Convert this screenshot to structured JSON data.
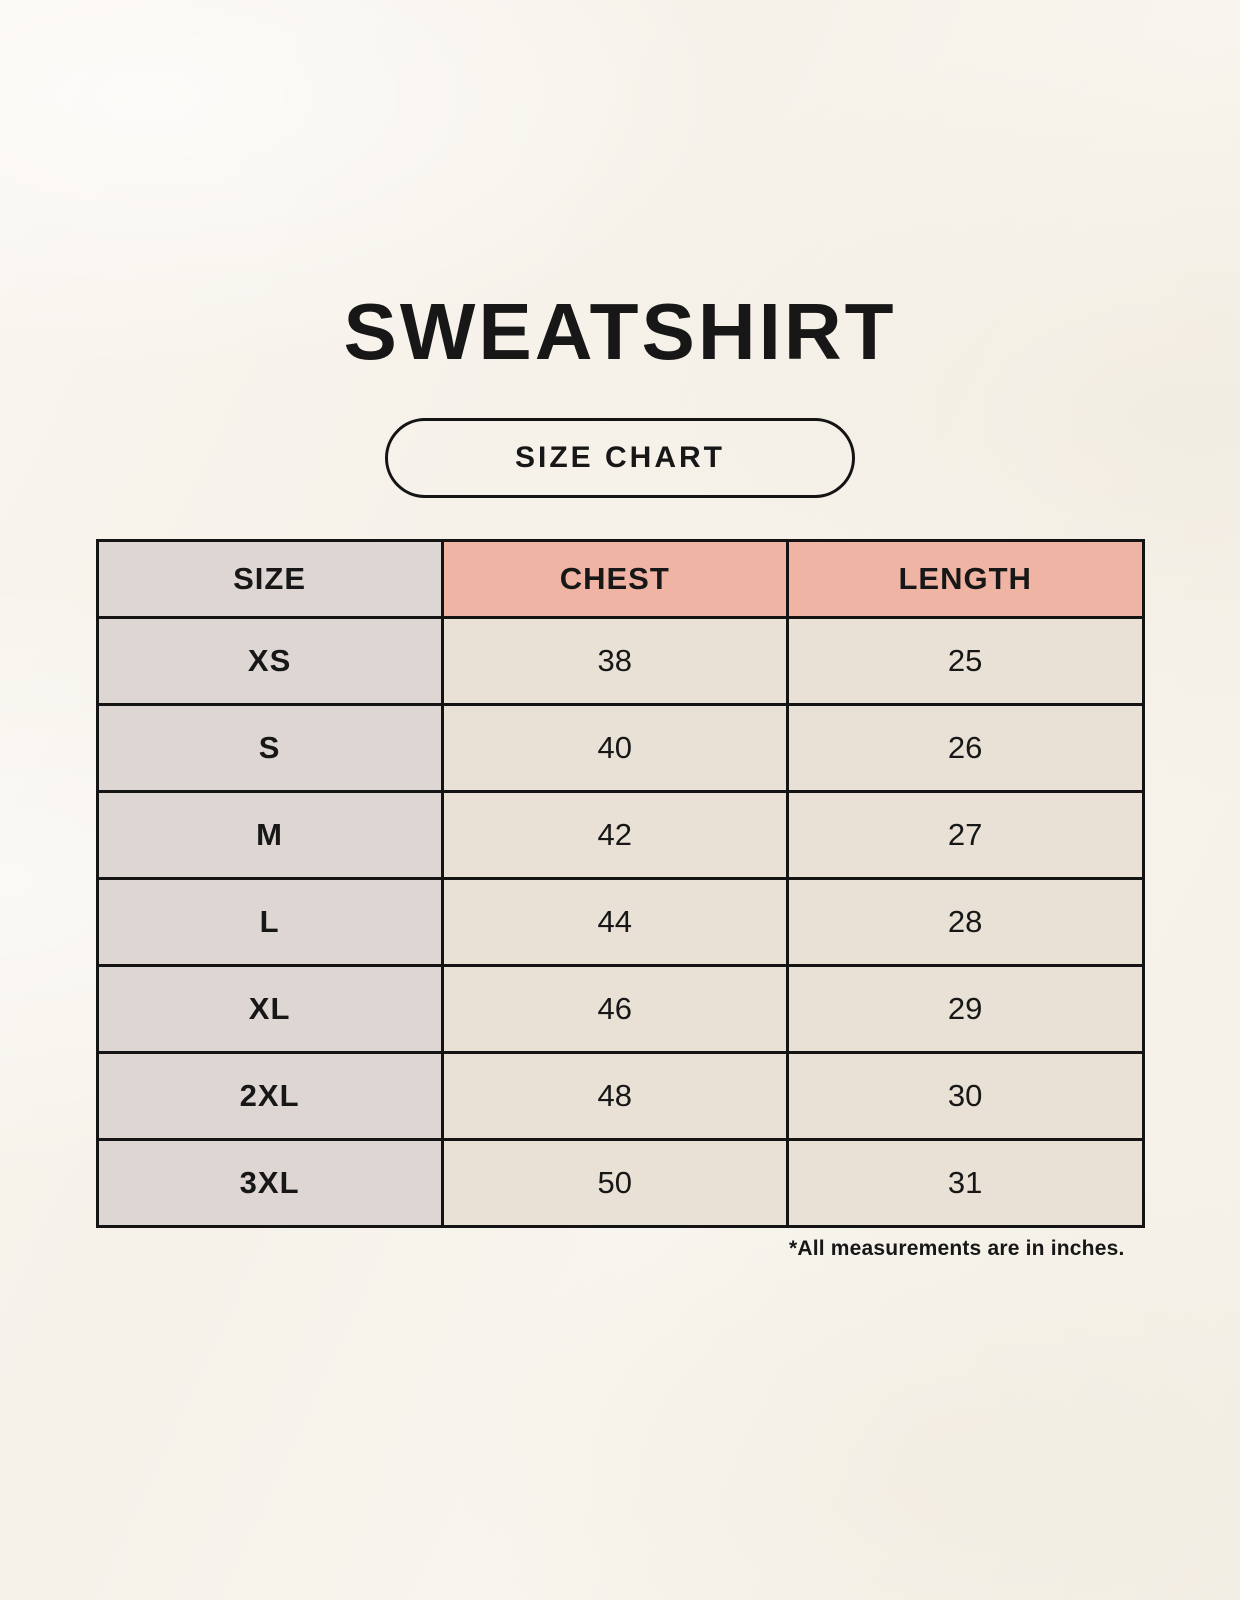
{
  "title": "SWEATSHIRT",
  "badge_label": "SIZE CHART",
  "chart_data": {
    "type": "table",
    "title": "SWEATSHIRT",
    "subtitle": "SIZE CHART",
    "columns": [
      "SIZE",
      "CHEST",
      "LENGTH"
    ],
    "rows": [
      {
        "size": "XS",
        "chest": 38,
        "length": 25
      },
      {
        "size": "S",
        "chest": 40,
        "length": 26
      },
      {
        "size": "M",
        "chest": 42,
        "length": 27
      },
      {
        "size": "L",
        "chest": 44,
        "length": 28
      },
      {
        "size": "XL",
        "chest": 46,
        "length": 29
      },
      {
        "size": "2XL",
        "chest": 48,
        "length": 30
      },
      {
        "size": "3XL",
        "chest": 50,
        "length": 31
      }
    ],
    "units": "inches",
    "note": "*All measurements are in inches."
  },
  "colors": {
    "page_background": "#f7f3ed",
    "header_size_cell": "#ddd6d2",
    "header_measure_cell": "#efb4a3",
    "size_column_cell": "#ddd6d2",
    "value_cell": "#e9e1d6",
    "border": "#141414",
    "text": "#171717"
  }
}
